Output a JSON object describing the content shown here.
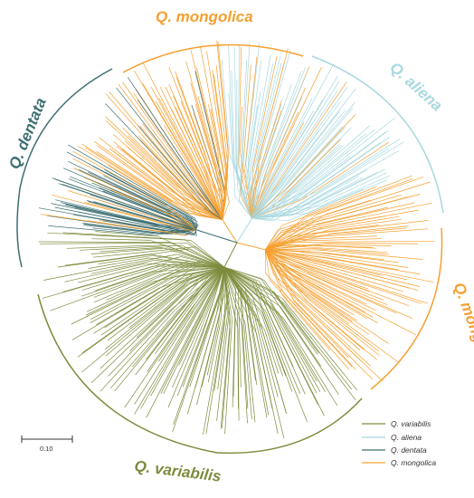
{
  "figure": {
    "clades": [
      {
        "key": "variabilis",
        "label": "Q. variabilis",
        "color": "#7c8c3c"
      },
      {
        "key": "aliena",
        "label": "Q. aliena",
        "color": "#a8d8df"
      },
      {
        "key": "dentata",
        "label": "Q. dentata",
        "color": "#3d6e72"
      },
      {
        "key": "mongolica_top",
        "label": "Q. mongolica",
        "color": "#f5a030"
      },
      {
        "key": "mongolica_right",
        "label": "Q. mongolica",
        "color": "#f5a030"
      }
    ],
    "legend": [
      {
        "label": "Q. variabilis",
        "color": "#7c8c3c"
      },
      {
        "label": "Q. aliena",
        "color": "#a8d8df"
      },
      {
        "label": "Q. dentata",
        "color": "#3d6e72"
      },
      {
        "label": "Q. mongolica",
        "color": "#f5a030"
      }
    ],
    "scale_bar": {
      "label": "0.10"
    }
  }
}
